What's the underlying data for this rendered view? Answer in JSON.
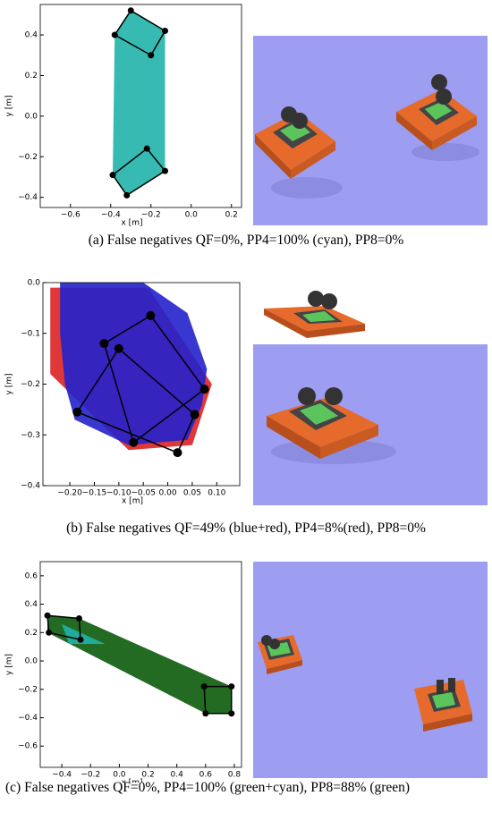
{
  "chart_data": [
    {
      "type": "scatter",
      "xlabel": "x [m]",
      "ylabel": "y [m]",
      "xlim": [
        -0.75,
        0.25
      ],
      "ylim": [
        -0.45,
        0.55
      ],
      "xticks": [
        {
          "value": -0.6,
          "label": "−0.6"
        },
        {
          "value": -0.4,
          "label": "−0.4"
        },
        {
          "value": -0.2,
          "label": "−0.2"
        },
        {
          "value": 0,
          "label": "0.0"
        },
        0.2
      ],
      "yticks": [
        {
          "value": -0.4,
          "label": "−0.4"
        },
        {
          "value": -0.2,
          "label": "−0.2"
        },
        {
          "value": 0,
          "label": "0.0"
        },
        0.2,
        0.4
      ],
      "series": [
        {
          "color": "#20b2aa",
          "style": "area",
          "x": [
            -0.3,
            -0.13,
            -0.13,
            -0.32,
            -0.39,
            -0.38
          ],
          "y": [
            0.52,
            0.42,
            -0.27,
            -0.39,
            -0.29,
            0.4
          ]
        },
        {
          "color": "#000000",
          "style": "outline",
          "x": [
            -0.3,
            -0.13,
            -0.2,
            -0.38
          ],
          "y": [
            0.52,
            0.42,
            0.3,
            0.4
          ]
        },
        {
          "color": "#000000",
          "style": "outline",
          "x": [
            -0.22,
            -0.13,
            -0.32,
            -0.39
          ],
          "y": [
            -0.16,
            -0.27,
            -0.39,
            -0.29
          ]
        }
      ]
    },
    {
      "type": "scatter",
      "xlabel": "x [m]",
      "ylabel": "y [m]",
      "xlim": [
        -0.255,
        0.147
      ],
      "ylim": [
        -0.4,
        0.0
      ],
      "xticks": [
        {
          "value": -0.2,
          "label": "−0.20"
        },
        {
          "value": -0.15,
          "label": "−0.15"
        },
        {
          "value": -0.1,
          "label": "−0.10"
        },
        {
          "value": -0.05,
          "label": "−0.05"
        },
        {
          "value": 0,
          "label": "0.00"
        },
        {
          "value": 0.05,
          "label": "0.05"
        },
        {
          "value": 0.1,
          "label": "0.10"
        }
      ],
      "yticks": [
        {
          "value": -0.4,
          "label": "−0.4"
        },
        {
          "value": -0.3,
          "label": "−0.3"
        },
        {
          "value": -0.2,
          "label": "−0.2"
        },
        {
          "value": -0.1,
          "label": "−0.1"
        },
        {
          "value": 0,
          "label": "0.0"
        }
      ],
      "series": [
        {
          "color": "#dd2222",
          "style": "area",
          "x": [
            -0.24,
            -0.04,
            0.09,
            0.05,
            -0.08,
            -0.24
          ],
          "y": [
            -0.01,
            -0.01,
            -0.2,
            -0.32,
            -0.33,
            -0.18
          ]
        },
        {
          "color": "#2222cc",
          "style": "area",
          "x": [
            -0.22,
            -0.05,
            0.04,
            0.08,
            0.07,
            0.04,
            -0.08,
            -0.19,
            -0.21,
            -0.22
          ],
          "y": [
            0,
            0,
            -0.06,
            -0.17,
            -0.24,
            -0.31,
            -0.32,
            -0.27,
            -0.2,
            -0.1
          ]
        },
        {
          "color": "#000000",
          "style": "outline",
          "x": [
            -0.13,
            -0.035,
            0.075,
            -0.07
          ],
          "y": [
            -0.12,
            -0.065,
            -0.21,
            -0.315
          ]
        },
        {
          "color": "#000000",
          "style": "outline",
          "x": [
            -0.1,
            0.055,
            0.02,
            -0.185
          ],
          "y": [
            -0.13,
            -0.26,
            -0.335,
            -0.255
          ]
        }
      ]
    },
    {
      "type": "scatter",
      "xlabel": "x [m]",
      "ylabel": "y [m]",
      "xlim": [
        -0.55,
        0.85
      ],
      "ylim": [
        -0.75,
        0.7
      ],
      "xticks": [
        {
          "value": -0.4,
          "label": "−0.4"
        },
        {
          "value": -0.2,
          "label": "−0.2"
        },
        {
          "value": 0,
          "label": "0.0"
        },
        0.2,
        0.4,
        0.6,
        0.8
      ],
      "yticks": [
        {
          "value": -0.6,
          "label": "−0.6"
        },
        {
          "value": -0.4,
          "label": "−0.4"
        },
        {
          "value": -0.2,
          "label": "−0.2"
        },
        {
          "value": 0,
          "label": "0.0"
        },
        0.2,
        0.4,
        0.6
      ],
      "series": [
        {
          "color": "#0b5a0b",
          "style": "area",
          "x": [
            -0.5,
            -0.28,
            0.78,
            0.78,
            0.6,
            -0.5
          ],
          "y": [
            0.32,
            0.3,
            -0.18,
            -0.37,
            -0.37,
            0.2
          ]
        },
        {
          "color": "#20b2aa",
          "style": "area",
          "x": [
            -0.4,
            -0.1,
            -0.35
          ],
          "y": [
            0.26,
            0.12,
            0.12
          ]
        },
        {
          "color": "#000000",
          "style": "outline",
          "x": [
            -0.5,
            -0.28,
            -0.27,
            -0.49
          ],
          "y": [
            0.32,
            0.3,
            0.15,
            0.2
          ]
        },
        {
          "color": "#000000",
          "style": "outline",
          "x": [
            0.59,
            0.78,
            0.78,
            0.6
          ],
          "y": [
            -0.18,
            -0.18,
            -0.37,
            -0.37
          ]
        }
      ]
    }
  ],
  "captions": [
    "(a) False negatives QF=0%, PP4=100% (cyan), PP8=0%",
    "(b) False negatives QF=49% (blue+red), PP4=8%(red), PP8=0%",
    "(c) False negatives QF=0%, PP4=100% (green+cyan), PP8=88% (green)"
  ]
}
